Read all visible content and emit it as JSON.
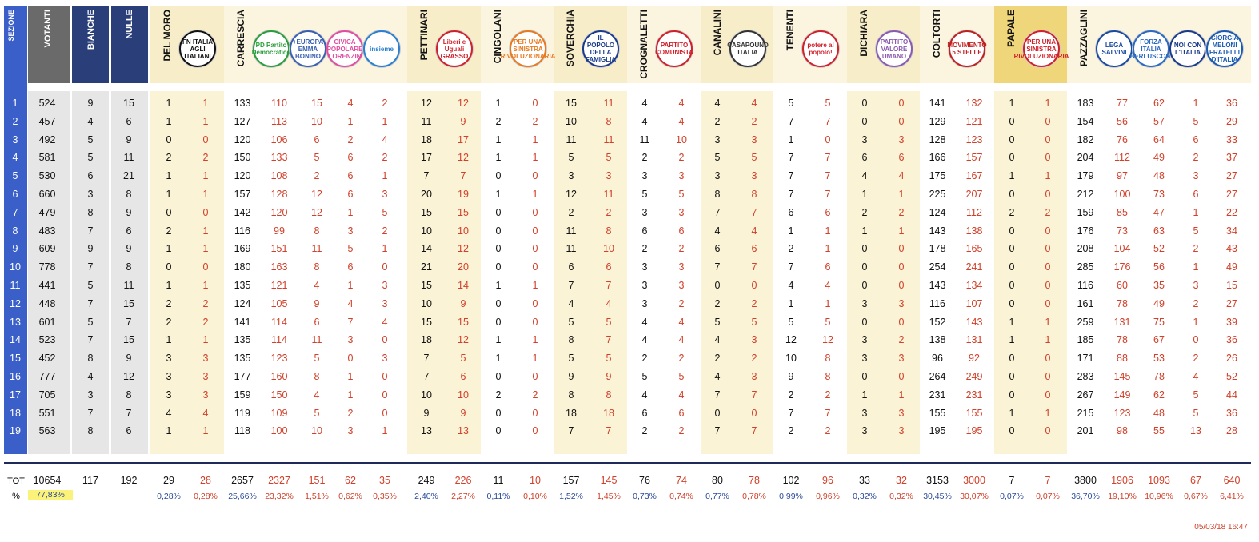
{
  "headers": {
    "sezione": "SEZIONE",
    "votanti": "VOTANTI",
    "bianche": "BIANCHE",
    "nulle": "NULLE"
  },
  "candidates": [
    {
      "name": "DEL MORO",
      "lists": [
        {
          "logo": "FN ITALIA AGLI ITALIANI",
          "color": "#111"
        }
      ]
    },
    {
      "name": "CARRESCIA",
      "lists": [
        {
          "logo": "PD Partito Democratico",
          "color": "#2a9d3a"
        },
        {
          "logo": "+EUROPA EMMA BONINO",
          "color": "#3a5fb0"
        },
        {
          "logo": "CIVICA POPOLARE LORENZIN",
          "color": "#e24da0"
        },
        {
          "logo": "insieme",
          "color": "#2a7fd0"
        }
      ]
    },
    {
      "name": "PETTINARI",
      "lists": [
        {
          "logo": "Liberi e Uguali GRASSO",
          "color": "#d0202a"
        }
      ]
    },
    {
      "name": "CINGOLANI",
      "lists": [
        {
          "logo": "PER UNA SINISTRA RIVOLUZIONARIA",
          "color": "#e87a20"
        }
      ]
    },
    {
      "name": "SOVERCHIA",
      "lists": [
        {
          "logo": "IL POPOLO DELLA FAMIGLIA",
          "color": "#1a3a8a"
        }
      ]
    },
    {
      "name": "CROGNALETTI",
      "lists": [
        {
          "logo": "PARTITO COMUNISTA",
          "color": "#d0202a"
        }
      ]
    },
    {
      "name": "CANALINI",
      "lists": [
        {
          "logo": "CASAPOUND ITALIA",
          "color": "#333"
        }
      ]
    },
    {
      "name": "TENENTI",
      "lists": [
        {
          "logo": "potere al popolo!",
          "color": "#d0202a"
        }
      ]
    },
    {
      "name": "DICHIARA",
      "lists": [
        {
          "logo": "PARTITO VALORE UMANO",
          "color": "#8a5ab0"
        }
      ]
    },
    {
      "name": "COLTORTI",
      "lists": [
        {
          "logo": "MOVIMENTO 5 STELLE",
          "color": "#c02020"
        }
      ]
    },
    {
      "name": "PAPALE",
      "lists": [
        {
          "logo": "PER UNA SINISTRA RIVOLUZIONARIA",
          "color": "#d0202a"
        }
      ]
    },
    {
      "name": "PAZZAGLINI",
      "lists": [
        {
          "logo": "LEGA SALVINI",
          "color": "#1a4aa0"
        },
        {
          "logo": "FORZA ITALIA BERLUSCONI",
          "color": "#2a6ac0"
        },
        {
          "logo": "NOI CON L'ITALIA",
          "color": "#1a3a8a"
        },
        {
          "logo": "GIORGIA MELONI FRATELLI D'ITALIA",
          "color": "#1a5ab0"
        }
      ]
    }
  ],
  "rows": [
    [
      "1",
      "524",
      "9",
      "15",
      "1",
      "1",
      "133",
      "110",
      "15",
      "4",
      "2",
      "12",
      "12",
      "1",
      "0",
      "15",
      "11",
      "4",
      "4",
      "4",
      "4",
      "5",
      "5",
      "0",
      "0",
      "141",
      "132",
      "1",
      "1",
      "183",
      "77",
      "62",
      "1",
      "36"
    ],
    [
      "2",
      "457",
      "4",
      "6",
      "1",
      "1",
      "127",
      "113",
      "10",
      "1",
      "1",
      "11",
      "9",
      "2",
      "2",
      "10",
      "8",
      "4",
      "4",
      "2",
      "2",
      "7",
      "7",
      "0",
      "0",
      "129",
      "121",
      "0",
      "0",
      "154",
      "56",
      "57",
      "5",
      "29"
    ],
    [
      "3",
      "492",
      "5",
      "9",
      "0",
      "0",
      "120",
      "106",
      "6",
      "2",
      "4",
      "18",
      "17",
      "1",
      "1",
      "11",
      "11",
      "11",
      "10",
      "3",
      "3",
      "1",
      "0",
      "3",
      "3",
      "128",
      "123",
      "0",
      "0",
      "182",
      "76",
      "64",
      "6",
      "33"
    ],
    [
      "4",
      "581",
      "5",
      "11",
      "2",
      "2",
      "150",
      "133",
      "5",
      "6",
      "2",
      "17",
      "12",
      "1",
      "1",
      "5",
      "5",
      "2",
      "2",
      "5",
      "5",
      "7",
      "7",
      "6",
      "6",
      "166",
      "157",
      "0",
      "0",
      "204",
      "112",
      "49",
      "2",
      "37"
    ],
    [
      "5",
      "530",
      "6",
      "21",
      "1",
      "1",
      "120",
      "108",
      "2",
      "6",
      "1",
      "7",
      "7",
      "0",
      "0",
      "3",
      "3",
      "3",
      "3",
      "3",
      "3",
      "7",
      "7",
      "4",
      "4",
      "175",
      "167",
      "1",
      "1",
      "179",
      "97",
      "48",
      "3",
      "27"
    ],
    [
      "6",
      "660",
      "3",
      "8",
      "1",
      "1",
      "157",
      "128",
      "12",
      "6",
      "3",
      "20",
      "19",
      "1",
      "1",
      "12",
      "11",
      "5",
      "5",
      "8",
      "8",
      "7",
      "7",
      "1",
      "1",
      "225",
      "207",
      "0",
      "0",
      "212",
      "100",
      "73",
      "6",
      "27"
    ],
    [
      "7",
      "479",
      "8",
      "9",
      "0",
      "0",
      "142",
      "120",
      "12",
      "1",
      "5",
      "15",
      "15",
      "0",
      "0",
      "2",
      "2",
      "3",
      "3",
      "7",
      "7",
      "6",
      "6",
      "2",
      "2",
      "124",
      "112",
      "2",
      "2",
      "159",
      "85",
      "47",
      "1",
      "22"
    ],
    [
      "8",
      "483",
      "7",
      "6",
      "2",
      "1",
      "116",
      "99",
      "8",
      "3",
      "2",
      "10",
      "10",
      "0",
      "0",
      "11",
      "8",
      "6",
      "6",
      "4",
      "4",
      "1",
      "1",
      "1",
      "1",
      "143",
      "138",
      "0",
      "0",
      "176",
      "73",
      "63",
      "5",
      "34"
    ],
    [
      "9",
      "609",
      "9",
      "9",
      "1",
      "1",
      "169",
      "151",
      "11",
      "5",
      "1",
      "14",
      "12",
      "0",
      "0",
      "11",
      "10",
      "2",
      "2",
      "6",
      "6",
      "2",
      "1",
      "0",
      "0",
      "178",
      "165",
      "0",
      "0",
      "208",
      "104",
      "52",
      "2",
      "43"
    ],
    [
      "10",
      "778",
      "7",
      "8",
      "0",
      "0",
      "180",
      "163",
      "8",
      "6",
      "0",
      "21",
      "20",
      "0",
      "0",
      "6",
      "6",
      "3",
      "3",
      "7",
      "7",
      "7",
      "6",
      "0",
      "0",
      "254",
      "241",
      "0",
      "0",
      "285",
      "176",
      "56",
      "1",
      "49"
    ],
    [
      "11",
      "441",
      "5",
      "11",
      "1",
      "1",
      "135",
      "121",
      "4",
      "1",
      "3",
      "15",
      "14",
      "1",
      "1",
      "7",
      "7",
      "3",
      "3",
      "0",
      "0",
      "4",
      "4",
      "0",
      "0",
      "143",
      "134",
      "0",
      "0",
      "116",
      "60",
      "35",
      "3",
      "15"
    ],
    [
      "12",
      "448",
      "7",
      "15",
      "2",
      "2",
      "124",
      "105",
      "9",
      "4",
      "3",
      "10",
      "9",
      "0",
      "0",
      "4",
      "4",
      "3",
      "2",
      "2",
      "2",
      "1",
      "1",
      "3",
      "3",
      "116",
      "107",
      "0",
      "0",
      "161",
      "78",
      "49",
      "2",
      "27"
    ],
    [
      "13",
      "601",
      "5",
      "7",
      "2",
      "2",
      "141",
      "114",
      "6",
      "7",
      "4",
      "15",
      "15",
      "0",
      "0",
      "5",
      "5",
      "4",
      "4",
      "5",
      "5",
      "5",
      "5",
      "0",
      "0",
      "152",
      "143",
      "1",
      "1",
      "259",
      "131",
      "75",
      "1",
      "39"
    ],
    [
      "14",
      "523",
      "7",
      "15",
      "1",
      "1",
      "135",
      "114",
      "11",
      "3",
      "0",
      "18",
      "12",
      "1",
      "1",
      "8",
      "7",
      "4",
      "4",
      "4",
      "3",
      "12",
      "12",
      "3",
      "2",
      "138",
      "131",
      "1",
      "1",
      "185",
      "78",
      "67",
      "0",
      "36"
    ],
    [
      "15",
      "452",
      "8",
      "9",
      "3",
      "3",
      "135",
      "123",
      "5",
      "0",
      "3",
      "7",
      "5",
      "1",
      "1",
      "5",
      "5",
      "2",
      "2",
      "2",
      "2",
      "10",
      "8",
      "3",
      "3",
      "96",
      "92",
      "0",
      "0",
      "171",
      "88",
      "53",
      "2",
      "26"
    ],
    [
      "16",
      "777",
      "4",
      "12",
      "3",
      "3",
      "177",
      "160",
      "8",
      "1",
      "0",
      "7",
      "6",
      "0",
      "0",
      "9",
      "9",
      "5",
      "5",
      "4",
      "3",
      "9",
      "8",
      "0",
      "0",
      "264",
      "249",
      "0",
      "0",
      "283",
      "145",
      "78",
      "4",
      "52"
    ],
    [
      "17",
      "705",
      "3",
      "8",
      "3",
      "3",
      "159",
      "150",
      "4",
      "1",
      "0",
      "10",
      "10",
      "2",
      "2",
      "8",
      "8",
      "4",
      "4",
      "7",
      "7",
      "2",
      "2",
      "1",
      "1",
      "231",
      "231",
      "0",
      "0",
      "267",
      "149",
      "62",
      "5",
      "44"
    ],
    [
      "18",
      "551",
      "7",
      "7",
      "4",
      "4",
      "119",
      "109",
      "5",
      "2",
      "0",
      "9",
      "9",
      "0",
      "0",
      "18",
      "18",
      "6",
      "6",
      "0",
      "0",
      "7",
      "7",
      "3",
      "3",
      "155",
      "155",
      "1",
      "1",
      "215",
      "123",
      "48",
      "5",
      "36"
    ],
    [
      "19",
      "563",
      "8",
      "6",
      "1",
      "1",
      "118",
      "100",
      "10",
      "3",
      "1",
      "13",
      "13",
      "0",
      "0",
      "7",
      "7",
      "2",
      "2",
      "7",
      "7",
      "2",
      "2",
      "3",
      "3",
      "195",
      "195",
      "0",
      "0",
      "201",
      "98",
      "55",
      "13",
      "28"
    ]
  ],
  "totals": {
    "label": "TOT",
    "values": [
      "10654",
      "117",
      "192",
      "29",
      "28",
      "2657",
      "2327",
      "151",
      "62",
      "35",
      "249",
      "226",
      "11",
      "10",
      "157",
      "145",
      "76",
      "74",
      "80",
      "78",
      "102",
      "96",
      "33",
      "32",
      "3153",
      "3000",
      "7",
      "7",
      "3800",
      "1906",
      "1093",
      "67",
      "640"
    ]
  },
  "percents": {
    "label": "%",
    "turnout": "77,83%",
    "values": [
      "0,28%",
      "0,28%",
      "25,66%",
      "23,32%",
      "1,51%",
      "0,62%",
      "0,35%",
      "2,40%",
      "2,27%",
      "0,11%",
      "0,10%",
      "1,52%",
      "1,45%",
      "0,73%",
      "0,74%",
      "0,77%",
      "0,78%",
      "0,99%",
      "0,96%",
      "0,32%",
      "0,32%",
      "30,45%",
      "30,07%",
      "0,07%",
      "0,07%",
      "36,70%",
      "19,10%",
      "10,96%",
      "0,67%",
      "6,41%"
    ]
  },
  "timestamp": "05/03/18 16:47",
  "colors": {
    "sezione": "#3a5fc8",
    "votanti": "#6a6a6a",
    "navy": "#2a3f7a",
    "cream": "#f7edc8",
    "creamLight": "#fbf5e0",
    "gold": "#f0d67a",
    "total_line": "#1d2a5a"
  }
}
